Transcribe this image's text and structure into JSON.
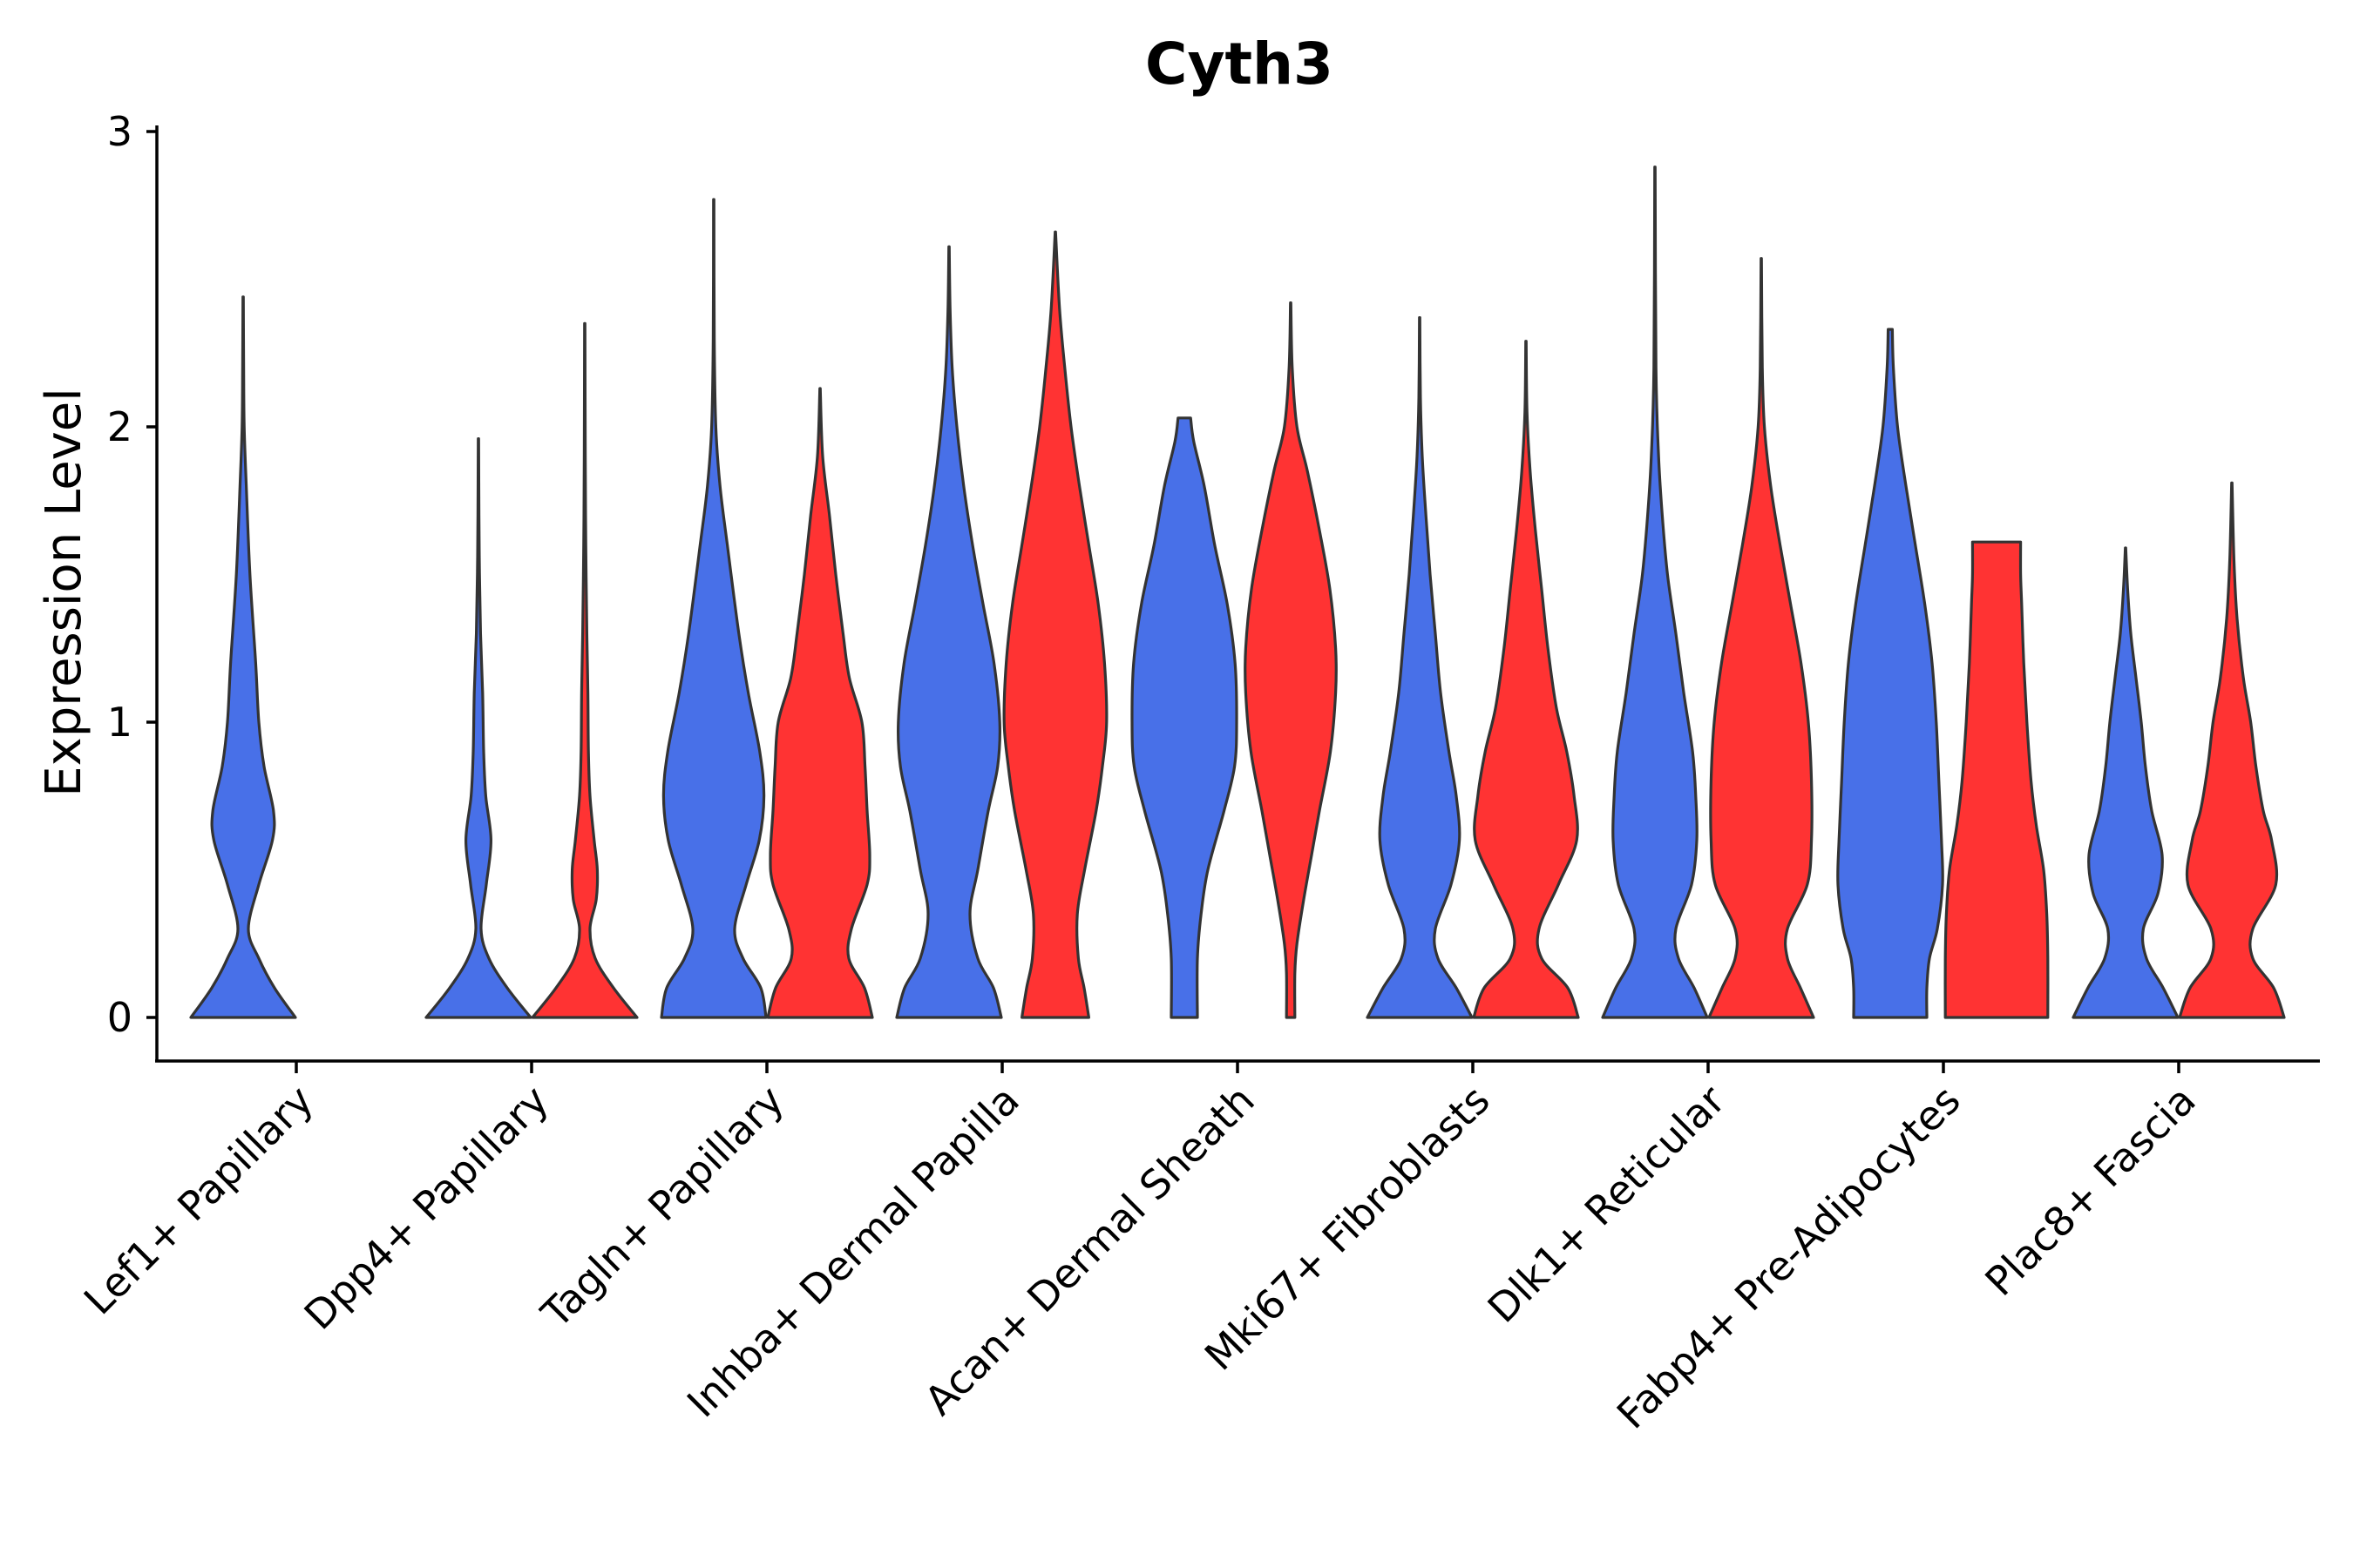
{
  "chart_data": {
    "type": "violin",
    "title": "Cyth3",
    "xlabel": "",
    "ylabel": "Expression Level",
    "ylim": [
      -0.15,
      3.05
    ],
    "yticks": [
      0,
      1,
      2,
      3
    ],
    "ytick_labels": [
      "0",
      "1",
      "2",
      "3"
    ],
    "grid": false,
    "legend": "none",
    "colors": {
      "group_a": "#4870E8",
      "group_b": "#FF3333",
      "outline": "#333333"
    },
    "categories": [
      "Lef1+ Papillary",
      "Dpp4+ Papillary",
      "Tagln+ Papillary",
      "Inhba+ Dermal Papilla",
      "Acan+ Dermal Sheath",
      "Mki67+ Fibroblasts",
      "Dlk1+ Reticular",
      "Fabp4+ Pre-Adipocytes",
      "Plac8+ Fascia"
    ],
    "violins": [
      {
        "category": "Lef1+ Papillary",
        "group": "a",
        "max": 2.44,
        "profile": [
          [
            0,
            1.0
          ],
          [
            0.1,
            0.6
          ],
          [
            0.2,
            0.3
          ],
          [
            0.3,
            0.1
          ],
          [
            0.45,
            0.3
          ],
          [
            0.6,
            0.56
          ],
          [
            0.7,
            0.58
          ],
          [
            0.85,
            0.4
          ],
          [
            1.0,
            0.3
          ],
          [
            1.2,
            0.24
          ],
          [
            1.5,
            0.13
          ],
          [
            1.8,
            0.06
          ],
          [
            2.0,
            0.02
          ],
          [
            2.2,
            0.01
          ],
          [
            2.44,
            0.004
          ]
        ]
      },
      {
        "category": "Dpp4+ Papillary",
        "group": "a",
        "max": 1.96,
        "profile": [
          [
            0,
            1.0
          ],
          [
            0.1,
            0.55
          ],
          [
            0.2,
            0.2
          ],
          [
            0.3,
            0.05
          ],
          [
            0.45,
            0.15
          ],
          [
            0.6,
            0.24
          ],
          [
            0.75,
            0.14
          ],
          [
            0.9,
            0.1
          ],
          [
            1.1,
            0.08
          ],
          [
            1.3,
            0.04
          ],
          [
            1.5,
            0.02
          ],
          [
            1.7,
            0.01
          ],
          [
            1.96,
            0.004
          ]
        ]
      },
      {
        "category": "Dpp4+ Papillary",
        "group": "b",
        "max": 2.35,
        "profile": [
          [
            0,
            1.0
          ],
          [
            0.1,
            0.55
          ],
          [
            0.2,
            0.2
          ],
          [
            0.3,
            0.1
          ],
          [
            0.4,
            0.22
          ],
          [
            0.5,
            0.24
          ],
          [
            0.6,
            0.18
          ],
          [
            0.75,
            0.1
          ],
          [
            0.9,
            0.07
          ],
          [
            1.1,
            0.06
          ],
          [
            1.3,
            0.04
          ],
          [
            1.6,
            0.02
          ],
          [
            1.9,
            0.01
          ],
          [
            2.35,
            0.004
          ]
        ]
      },
      {
        "category": "Tagln+ Papillary",
        "group": "a",
        "max": 2.77,
        "profile": [
          [
            0,
            1.0
          ],
          [
            0.1,
            0.9
          ],
          [
            0.2,
            0.56
          ],
          [
            0.3,
            0.4
          ],
          [
            0.45,
            0.62
          ],
          [
            0.6,
            0.87
          ],
          [
            0.75,
            0.96
          ],
          [
            0.9,
            0.88
          ],
          [
            1.1,
            0.66
          ],
          [
            1.3,
            0.48
          ],
          [
            1.6,
            0.26
          ],
          [
            1.8,
            0.12
          ],
          [
            2.0,
            0.04
          ],
          [
            2.3,
            0.01
          ],
          [
            2.77,
            0.004
          ]
        ]
      },
      {
        "category": "Tagln+ Papillary",
        "group": "b",
        "max": 2.13,
        "profile": [
          [
            0,
            1.0
          ],
          [
            0.1,
            0.85
          ],
          [
            0.2,
            0.55
          ],
          [
            0.3,
            0.6
          ],
          [
            0.45,
            0.9
          ],
          [
            0.55,
            0.95
          ],
          [
            0.7,
            0.9
          ],
          [
            0.85,
            0.86
          ],
          [
            1.0,
            0.8
          ],
          [
            1.15,
            0.56
          ],
          [
            1.3,
            0.44
          ],
          [
            1.5,
            0.3
          ],
          [
            1.7,
            0.18
          ],
          [
            1.9,
            0.05
          ],
          [
            2.13,
            0.004
          ]
        ]
      },
      {
        "category": "Inhba+ Dermal Papilla",
        "group": "a",
        "max": 2.61,
        "profile": [
          [
            0,
            1.0
          ],
          [
            0.1,
            0.85
          ],
          [
            0.2,
            0.55
          ],
          [
            0.35,
            0.4
          ],
          [
            0.5,
            0.55
          ],
          [
            0.7,
            0.75
          ],
          [
            0.85,
            0.93
          ],
          [
            1.0,
            0.97
          ],
          [
            1.2,
            0.86
          ],
          [
            1.4,
            0.65
          ],
          [
            1.6,
            0.45
          ],
          [
            1.8,
            0.28
          ],
          [
            2.0,
            0.15
          ],
          [
            2.2,
            0.06
          ],
          [
            2.4,
            0.02
          ],
          [
            2.61,
            0.004
          ]
        ]
      },
      {
        "category": "Inhba+ Dermal Papilla",
        "group": "b",
        "max": 2.66,
        "profile": [
          [
            0,
            0.64
          ],
          [
            0.1,
            0.55
          ],
          [
            0.2,
            0.44
          ],
          [
            0.35,
            0.42
          ],
          [
            0.5,
            0.56
          ],
          [
            0.7,
            0.78
          ],
          [
            0.85,
            0.9
          ],
          [
            1.0,
            0.98
          ],
          [
            1.2,
            0.94
          ],
          [
            1.4,
            0.82
          ],
          [
            1.6,
            0.64
          ],
          [
            1.8,
            0.46
          ],
          [
            2.0,
            0.3
          ],
          [
            2.2,
            0.18
          ],
          [
            2.4,
            0.08
          ],
          [
            2.66,
            0.004
          ]
        ]
      },
      {
        "category": "Acan+ Dermal Sheath",
        "group": "a",
        "max": 2.03,
        "profile": [
          [
            0,
            0.25
          ],
          [
            0.2,
            0.25
          ],
          [
            0.35,
            0.32
          ],
          [
            0.5,
            0.45
          ],
          [
            0.7,
            0.76
          ],
          [
            0.85,
            0.96
          ],
          [
            1.0,
            1.0
          ],
          [
            1.2,
            0.97
          ],
          [
            1.4,
            0.82
          ],
          [
            1.6,
            0.58
          ],
          [
            1.8,
            0.38
          ],
          [
            1.95,
            0.18
          ],
          [
            2.03,
            0.12
          ]
        ]
      },
      {
        "category": "Acan+ Dermal Sheath",
        "group": "b",
        "max": 2.42,
        "profile": [
          [
            0,
            0.08
          ],
          [
            0.15,
            0.08
          ],
          [
            0.25,
            0.12
          ],
          [
            0.4,
            0.25
          ],
          [
            0.55,
            0.4
          ],
          [
            0.7,
            0.55
          ],
          [
            0.9,
            0.76
          ],
          [
            1.1,
            0.86
          ],
          [
            1.25,
            0.86
          ],
          [
            1.45,
            0.75
          ],
          [
            1.65,
            0.55
          ],
          [
            1.85,
            0.32
          ],
          [
            2.0,
            0.12
          ],
          [
            2.2,
            0.03
          ],
          [
            2.42,
            0.004
          ]
        ]
      },
      {
        "category": "Mki67+ Fibroblasts",
        "group": "a",
        "max": 2.37,
        "profile": [
          [
            0,
            1.0
          ],
          [
            0.1,
            0.7
          ],
          [
            0.2,
            0.35
          ],
          [
            0.3,
            0.3
          ],
          [
            0.45,
            0.6
          ],
          [
            0.6,
            0.76
          ],
          [
            0.75,
            0.7
          ],
          [
            0.9,
            0.56
          ],
          [
            1.1,
            0.4
          ],
          [
            1.3,
            0.3
          ],
          [
            1.5,
            0.2
          ],
          [
            1.7,
            0.12
          ],
          [
            1.9,
            0.05
          ],
          [
            2.1,
            0.015
          ],
          [
            2.37,
            0.004
          ]
        ]
      },
      {
        "category": "Mki67+ Fibroblasts",
        "group": "b",
        "max": 2.29,
        "profile": [
          [
            0,
            1.0
          ],
          [
            0.1,
            0.8
          ],
          [
            0.2,
            0.3
          ],
          [
            0.3,
            0.25
          ],
          [
            0.45,
            0.62
          ],
          [
            0.6,
            0.97
          ],
          [
            0.75,
            0.92
          ],
          [
            0.9,
            0.78
          ],
          [
            1.05,
            0.58
          ],
          [
            1.25,
            0.42
          ],
          [
            1.45,
            0.3
          ],
          [
            1.65,
            0.18
          ],
          [
            1.85,
            0.08
          ],
          [
            2.05,
            0.02
          ],
          [
            2.29,
            0.004
          ]
        ]
      },
      {
        "category": "Dlk1+ Reticular",
        "group": "a",
        "max": 2.88,
        "profile": [
          [
            0,
            1.0
          ],
          [
            0.1,
            0.75
          ],
          [
            0.2,
            0.45
          ],
          [
            0.3,
            0.4
          ],
          [
            0.45,
            0.7
          ],
          [
            0.6,
            0.8
          ],
          [
            0.75,
            0.78
          ],
          [
            0.9,
            0.72
          ],
          [
            1.1,
            0.55
          ],
          [
            1.3,
            0.4
          ],
          [
            1.5,
            0.24
          ],
          [
            1.7,
            0.14
          ],
          [
            1.9,
            0.07
          ],
          [
            2.2,
            0.02
          ],
          [
            2.88,
            0.004
          ]
        ]
      },
      {
        "category": "Dlk1+ Reticular",
        "group": "b",
        "max": 2.57,
        "profile": [
          [
            0,
            1.0
          ],
          [
            0.1,
            0.75
          ],
          [
            0.2,
            0.5
          ],
          [
            0.3,
            0.5
          ],
          [
            0.45,
            0.88
          ],
          [
            0.6,
            0.96
          ],
          [
            0.8,
            0.96
          ],
          [
            1.0,
            0.9
          ],
          [
            1.2,
            0.76
          ],
          [
            1.4,
            0.56
          ],
          [
            1.6,
            0.36
          ],
          [
            1.8,
            0.18
          ],
          [
            2.0,
            0.06
          ],
          [
            2.2,
            0.02
          ],
          [
            2.57,
            0.004
          ]
        ]
      },
      {
        "category": "Fabp4+ Pre-Adipocytes",
        "group": "a",
        "max": 2.33,
        "profile": [
          [
            0,
            0.7
          ],
          [
            0.1,
            0.7
          ],
          [
            0.2,
            0.75
          ],
          [
            0.3,
            0.9
          ],
          [
            0.45,
            1.0
          ],
          [
            0.6,
            0.98
          ],
          [
            0.8,
            0.93
          ],
          [
            1.0,
            0.88
          ],
          [
            1.2,
            0.8
          ],
          [
            1.4,
            0.66
          ],
          [
            1.6,
            0.48
          ],
          [
            1.8,
            0.3
          ],
          [
            2.0,
            0.14
          ],
          [
            2.2,
            0.06
          ],
          [
            2.33,
            0.04
          ]
        ]
      },
      {
        "category": "Fabp4+ Pre-Adipocytes",
        "group": "b",
        "max": 1.61,
        "profile": [
          [
            0,
            0.98
          ],
          [
            0.2,
            0.98
          ],
          [
            0.35,
            0.96
          ],
          [
            0.5,
            0.9
          ],
          [
            0.65,
            0.76
          ],
          [
            0.8,
            0.66
          ],
          [
            1.0,
            0.58
          ],
          [
            1.2,
            0.52
          ],
          [
            1.4,
            0.48
          ],
          [
            1.5,
            0.46
          ],
          [
            1.61,
            0.46
          ]
        ]
      },
      {
        "category": "Plac8+ Fascia",
        "group": "a",
        "max": 1.59,
        "profile": [
          [
            0,
            1.0
          ],
          [
            0.1,
            0.72
          ],
          [
            0.2,
            0.4
          ],
          [
            0.3,
            0.34
          ],
          [
            0.42,
            0.62
          ],
          [
            0.55,
            0.7
          ],
          [
            0.7,
            0.5
          ],
          [
            0.85,
            0.38
          ],
          [
            1.0,
            0.3
          ],
          [
            1.15,
            0.2
          ],
          [
            1.3,
            0.1
          ],
          [
            1.45,
            0.04
          ],
          [
            1.59,
            0.004
          ]
        ]
      },
      {
        "category": "Plac8+ Fascia",
        "group": "b",
        "max": 1.81,
        "profile": [
          [
            0,
            1.0
          ],
          [
            0.1,
            0.8
          ],
          [
            0.2,
            0.4
          ],
          [
            0.3,
            0.4
          ],
          [
            0.45,
            0.84
          ],
          [
            0.6,
            0.76
          ],
          [
            0.7,
            0.6
          ],
          [
            0.85,
            0.46
          ],
          [
            1.0,
            0.36
          ],
          [
            1.15,
            0.22
          ],
          [
            1.35,
            0.1
          ],
          [
            1.55,
            0.04
          ],
          [
            1.81,
            0.004
          ]
        ]
      }
    ]
  }
}
